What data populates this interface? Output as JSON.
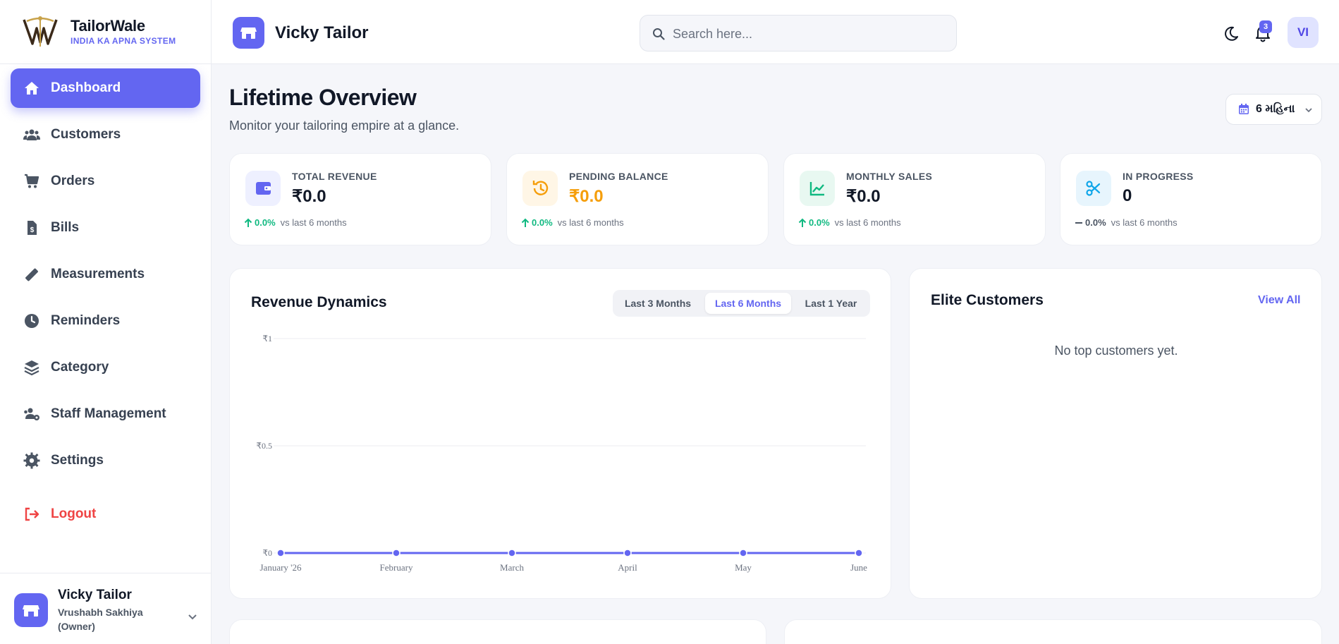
{
  "brand": {
    "name": "TailorWale",
    "tagline": "INDIA KA APNA SYSTEM"
  },
  "sidebar": {
    "items": [
      {
        "label": "Dashboard",
        "icon": "home-icon",
        "active": true
      },
      {
        "label": "Customers",
        "icon": "users-icon"
      },
      {
        "label": "Orders",
        "icon": "cart-icon"
      },
      {
        "label": "Bills",
        "icon": "bill-icon"
      },
      {
        "label": "Measurements",
        "icon": "ruler-icon"
      },
      {
        "label": "Reminders",
        "icon": "clock-icon"
      },
      {
        "label": "Category",
        "icon": "layers-icon"
      },
      {
        "label": "Staff Management",
        "icon": "staff-icon"
      },
      {
        "label": "Settings",
        "icon": "gear-icon"
      }
    ],
    "logout_label": "Logout",
    "user": {
      "shop": "Vicky Tailor",
      "role": "Vrushabh Sakhiya (Owner)"
    }
  },
  "header": {
    "shop_name": "Vicky Tailor",
    "search_placeholder": "Search here...",
    "notification_count": "3",
    "avatar_initials": "VI"
  },
  "page": {
    "title": "Lifetime Overview",
    "subtitle": "Monitor your tailoring empire at a glance.",
    "period_label": "6 મહિના"
  },
  "stats": [
    {
      "label": "TOTAL REVENUE",
      "value": "₹0.0",
      "change": "0.0%",
      "trend": "up",
      "note": "vs last 6 months",
      "icon": "wallet-icon",
      "color": "#6366f1"
    },
    {
      "label": "PENDING BALANCE",
      "value": "₹0.0",
      "change": "0.0%",
      "trend": "up",
      "note": "vs last 6 months",
      "icon": "history-icon",
      "color": "#f59e0b"
    },
    {
      "label": "MONTHLY SALES",
      "value": "₹0.0",
      "change": "0.0%",
      "trend": "up",
      "note": "vs last 6 months",
      "icon": "chart-line-icon",
      "color": "#10b981"
    },
    {
      "label": "IN PROGRESS",
      "value": "0",
      "change": "0.0%",
      "trend": "flat",
      "note": "vs last 6 months",
      "icon": "scissors-icon",
      "color": "#0ea5e9"
    }
  ],
  "revenue": {
    "title": "Revenue Dynamics",
    "ranges": [
      "Last 3 Months",
      "Last 6 Months",
      "Last 1 Year"
    ],
    "active_range": "Last 6 Months"
  },
  "chart_data": {
    "type": "line",
    "categories": [
      "January '26",
      "February",
      "March",
      "April",
      "May",
      "June"
    ],
    "series": [
      {
        "values": [
          0,
          0,
          0,
          0,
          0,
          0
        ]
      }
    ],
    "ylim": [
      0,
      1
    ],
    "yticks": [
      "₹0",
      "₹0.5",
      "₹1"
    ],
    "grid": true,
    "color": "#6366f1"
  },
  "elite": {
    "title": "Elite Customers",
    "view_all": "View All",
    "empty_text": "No top customers yet."
  }
}
